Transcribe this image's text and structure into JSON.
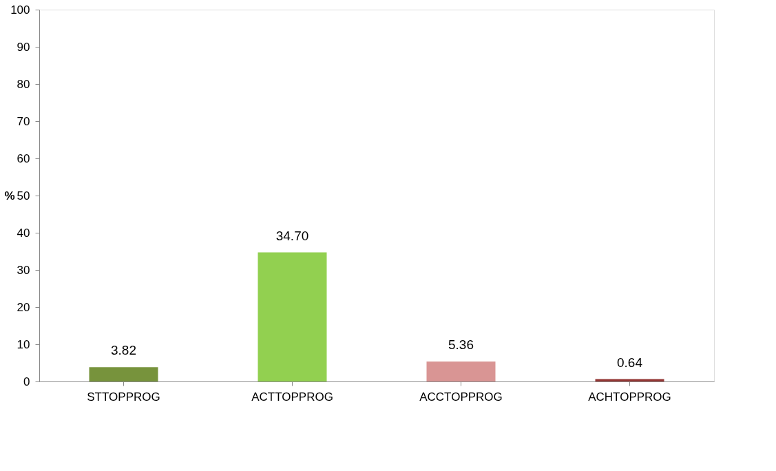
{
  "chart_data": {
    "type": "bar",
    "ylabel": "%",
    "categories": [
      "STTOPPROG",
      "ACTTOPPROG",
      "ACCTOPPROG",
      "ACHTOPPROG"
    ],
    "values": [
      3.82,
      34.7,
      5.36,
      0.64
    ],
    "colors": [
      "#77933c",
      "#92d050",
      "#d99594",
      "#943634"
    ],
    "value_labels": [
      "3.82",
      "34.70",
      "5.36",
      "0.64"
    ],
    "ylim": [
      0,
      100
    ],
    "yticks": [
      0,
      10,
      20,
      30,
      40,
      50,
      60,
      70,
      80,
      90,
      100
    ],
    "grid": false
  }
}
